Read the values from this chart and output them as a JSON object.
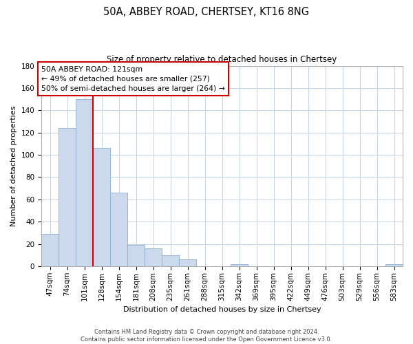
{
  "title": "50A, ABBEY ROAD, CHERTSEY, KT16 8NG",
  "subtitle": "Size of property relative to detached houses in Chertsey",
  "xlabel": "Distribution of detached houses by size in Chertsey",
  "ylabel": "Number of detached properties",
  "bar_labels": [
    "47sqm",
    "74sqm",
    "101sqm",
    "128sqm",
    "154sqm",
    "181sqm",
    "208sqm",
    "235sqm",
    "261sqm",
    "288sqm",
    "315sqm",
    "342sqm",
    "369sqm",
    "395sqm",
    "422sqm",
    "449sqm",
    "476sqm",
    "503sqm",
    "529sqm",
    "556sqm",
    "583sqm"
  ],
  "bar_heights": [
    29,
    124,
    150,
    106,
    66,
    19,
    16,
    10,
    6,
    0,
    0,
    2,
    0,
    0,
    0,
    0,
    0,
    0,
    0,
    0,
    2
  ],
  "bar_color": "#ccd9ec",
  "bar_edgecolor": "#8bafd4",
  "vline_x": 2.5,
  "vline_color": "#cc0000",
  "annotation_line1": "50A ABBEY ROAD: 121sqm",
  "annotation_line2": "← 49% of detached houses are smaller (257)",
  "annotation_line3": "50% of semi-detached houses are larger (264) →",
  "ylim": [
    0,
    180
  ],
  "yticks": [
    0,
    20,
    40,
    60,
    80,
    100,
    120,
    140,
    160,
    180
  ],
  "footer_line1": "Contains HM Land Registry data © Crown copyright and database right 2024.",
  "footer_line2": "Contains public sector information licensed under the Open Government Licence v3.0.",
  "background_color": "#ffffff",
  "grid_color": "#c8d4e0",
  "title_fontsize": 10.5,
  "subtitle_fontsize": 8.5,
  "axis_label_fontsize": 8,
  "tick_fontsize": 7.5
}
